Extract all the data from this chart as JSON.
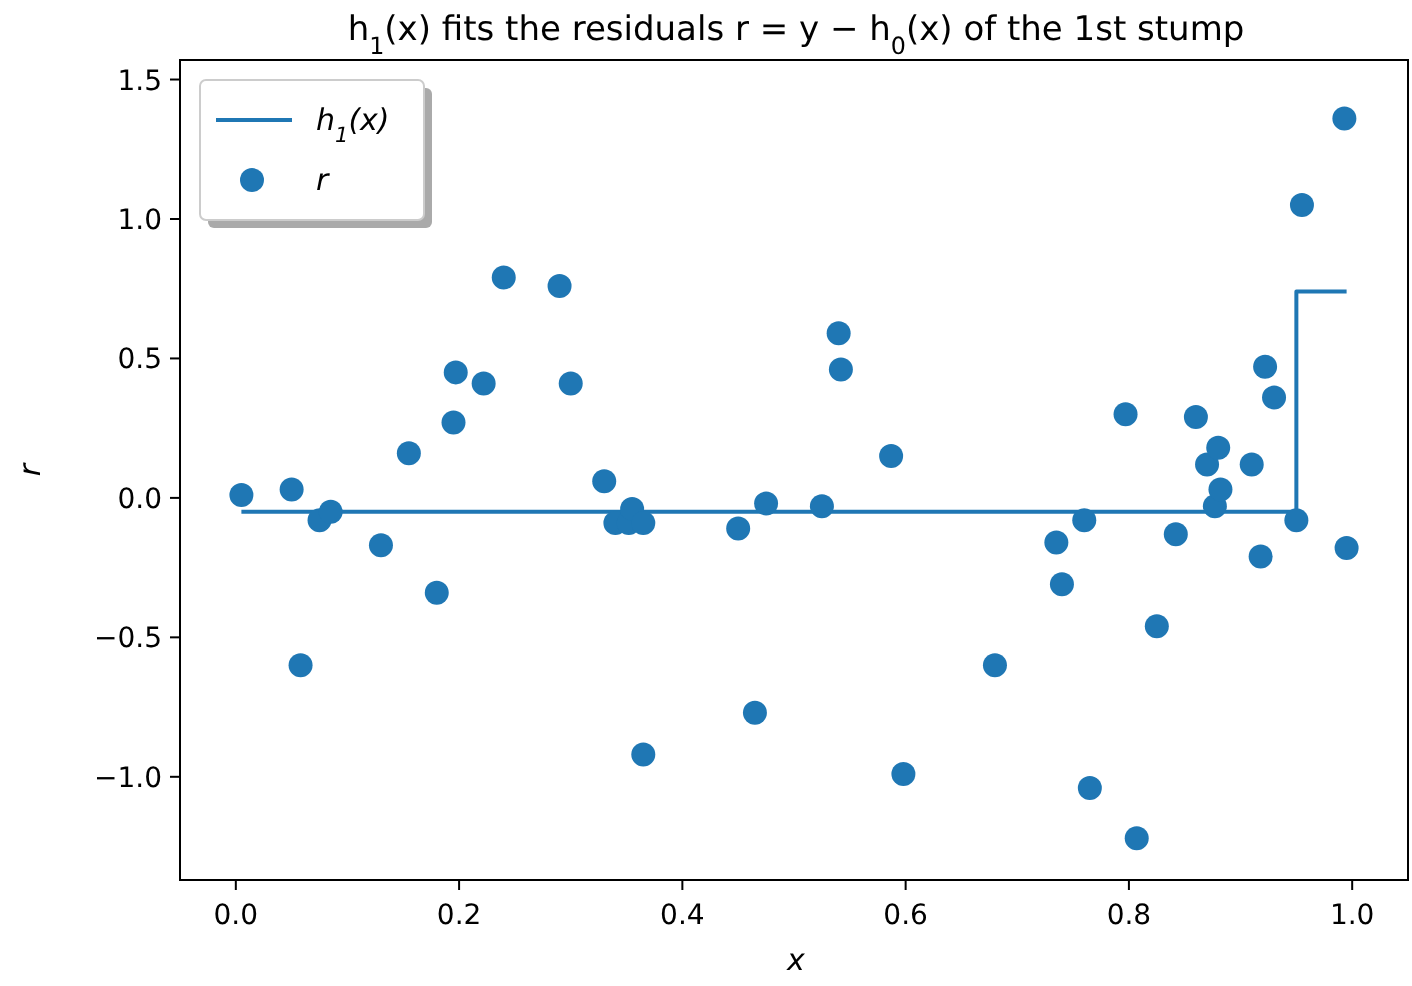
{
  "chart_data": {
    "type": "scatter",
    "title": "h$_{1}$(x) fits the residuals r = y − h$_{0}$(x) of the 1st stump",
    "xlabel": "x",
    "ylabel": "r",
    "xlim": [
      -0.05,
      1.05
    ],
    "ylim": [
      -1.37,
      1.57
    ],
    "xticks": [
      {
        "value": 0,
        "label": "0.0"
      },
      {
        "value": 0.2,
        "label": "0.2"
      },
      {
        "value": 0.4,
        "label": "0.4"
      },
      {
        "value": 0.6,
        "label": "0.6"
      },
      {
        "value": 0.8,
        "label": "0.8"
      },
      {
        "value": 1,
        "label": "1.0"
      }
    ],
    "yticks": [
      {
        "value": -1,
        "label": "−1.0"
      },
      {
        "value": -0.5,
        "label": "−0.5"
      },
      {
        "value": 0,
        "label": "0.0"
      },
      {
        "value": 0.5,
        "label": "0.5"
      },
      {
        "value": 1,
        "label": "1.0"
      },
      {
        "value": 1.5,
        "label": "1.5"
      }
    ],
    "legend": "top left",
    "grid": false,
    "series": [
      {
        "name": "h$_{1}$(x)",
        "type": "step",
        "color": "#1f77b4",
        "x": [
          0.005,
          0.95,
          0.995
        ],
        "values": [
          -0.05,
          0.74,
          0.74
        ]
      },
      {
        "name": "r",
        "color": "#1f77b4",
        "marker": "circle",
        "x": [
          0.005,
          0.05,
          0.058,
          0.075,
          0.085,
          0.13,
          0.155,
          0.18,
          0.195,
          0.197,
          0.222,
          0.24,
          0.29,
          0.3,
          0.33,
          0.34,
          0.352,
          0.355,
          0.365,
          0.365,
          0.45,
          0.465,
          0.475,
          0.525,
          0.54,
          0.542,
          0.587,
          0.598,
          0.68,
          0.735,
          0.74,
          0.76,
          0.765,
          0.797,
          0.807,
          0.825,
          0.842,
          0.86,
          0.87,
          0.877,
          0.88,
          0.882,
          0.91,
          0.918,
          0.922,
          0.93,
          0.95,
          0.955,
          0.993,
          0.995
        ],
        "values": [
          0.01,
          0.03,
          -0.6,
          -0.08,
          -0.05,
          -0.17,
          0.16,
          -0.34,
          0.27,
          0.45,
          0.41,
          0.79,
          0.76,
          0.41,
          0.06,
          -0.09,
          -0.09,
          -0.04,
          -0.09,
          -0.92,
          -0.11,
          -0.77,
          -0.02,
          -0.03,
          0.59,
          0.46,
          0.15,
          -0.99,
          -0.6,
          -0.16,
          -0.31,
          -0.08,
          -1.04,
          0.3,
          -1.22,
          -0.46,
          -0.13,
          0.29,
          0.12,
          -0.03,
          0.18,
          0.03,
          0.12,
          -0.21,
          0.47,
          0.36,
          -0.08,
          1.05,
          1.36,
          -0.18
        ]
      }
    ]
  }
}
